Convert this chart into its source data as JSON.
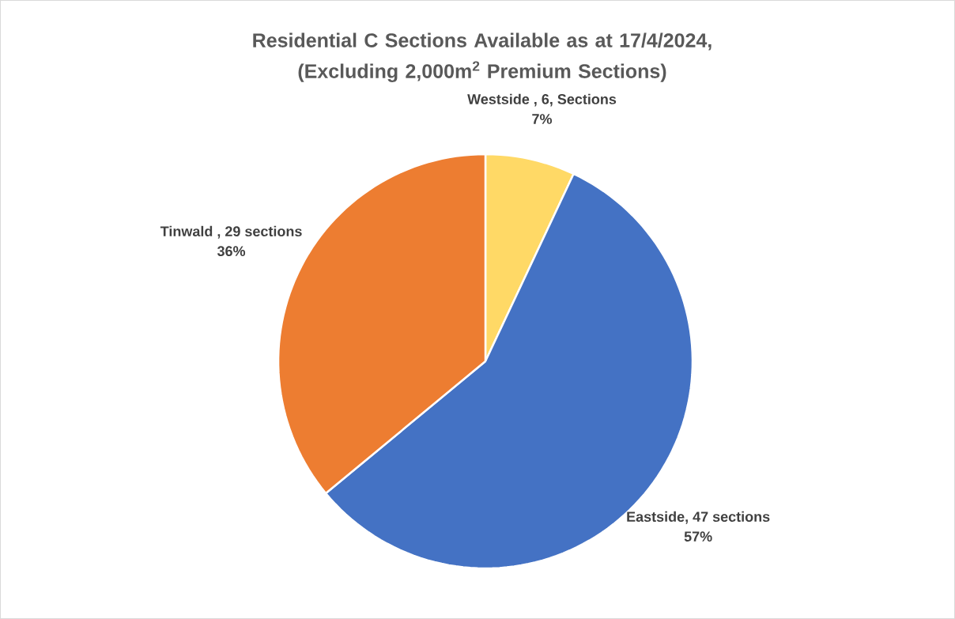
{
  "chart_data": {
    "type": "pie",
    "title": "Residential C Sections Available as at 17/4/2024, (Excluding 2,000m$^{2}$ Premium Sections)",
    "categories": [
      "Westside , 6, Sections",
      "Eastside, 47 sections",
      "Tinwald , 29 sections"
    ],
    "values": [
      7,
      57,
      36
    ],
    "value_labels": [
      "7%",
      "57%",
      "36%"
    ],
    "colors": [
      "#ffd966",
      "#4472c4",
      "#ed7d31"
    ]
  }
}
